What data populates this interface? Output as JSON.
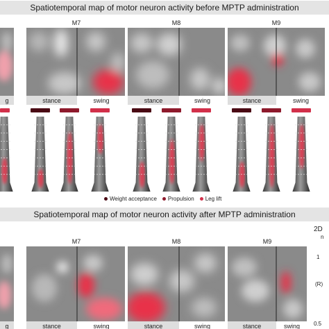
{
  "titles": {
    "top": "Spatiotemporal map of motor neuron activity before MPTP administration",
    "bottom": "Spatiotemporal map of motor neuron activity after MPTP administration"
  },
  "muscles": [
    "M7",
    "M8",
    "M9"
  ],
  "phases": {
    "stance": "stance",
    "swing": "swing",
    "partial": "g"
  },
  "legend": [
    {
      "label": "Weight acceptance",
      "color": "#4a0a14"
    },
    {
      "label": "Propulsion",
      "color": "#8e1a2c"
    },
    {
      "label": "Leg lift",
      "color": "#d2304a"
    }
  ],
  "axis": {
    "label_2d": "2D",
    "label_n": "n",
    "tick_1": "1",
    "tick_rx": "(R)",
    "tick_05": "0.5"
  },
  "colors": {
    "map_gray": "#8a8a8a",
    "active": "#e8304a",
    "title_bg": "#e4e4e4"
  }
}
